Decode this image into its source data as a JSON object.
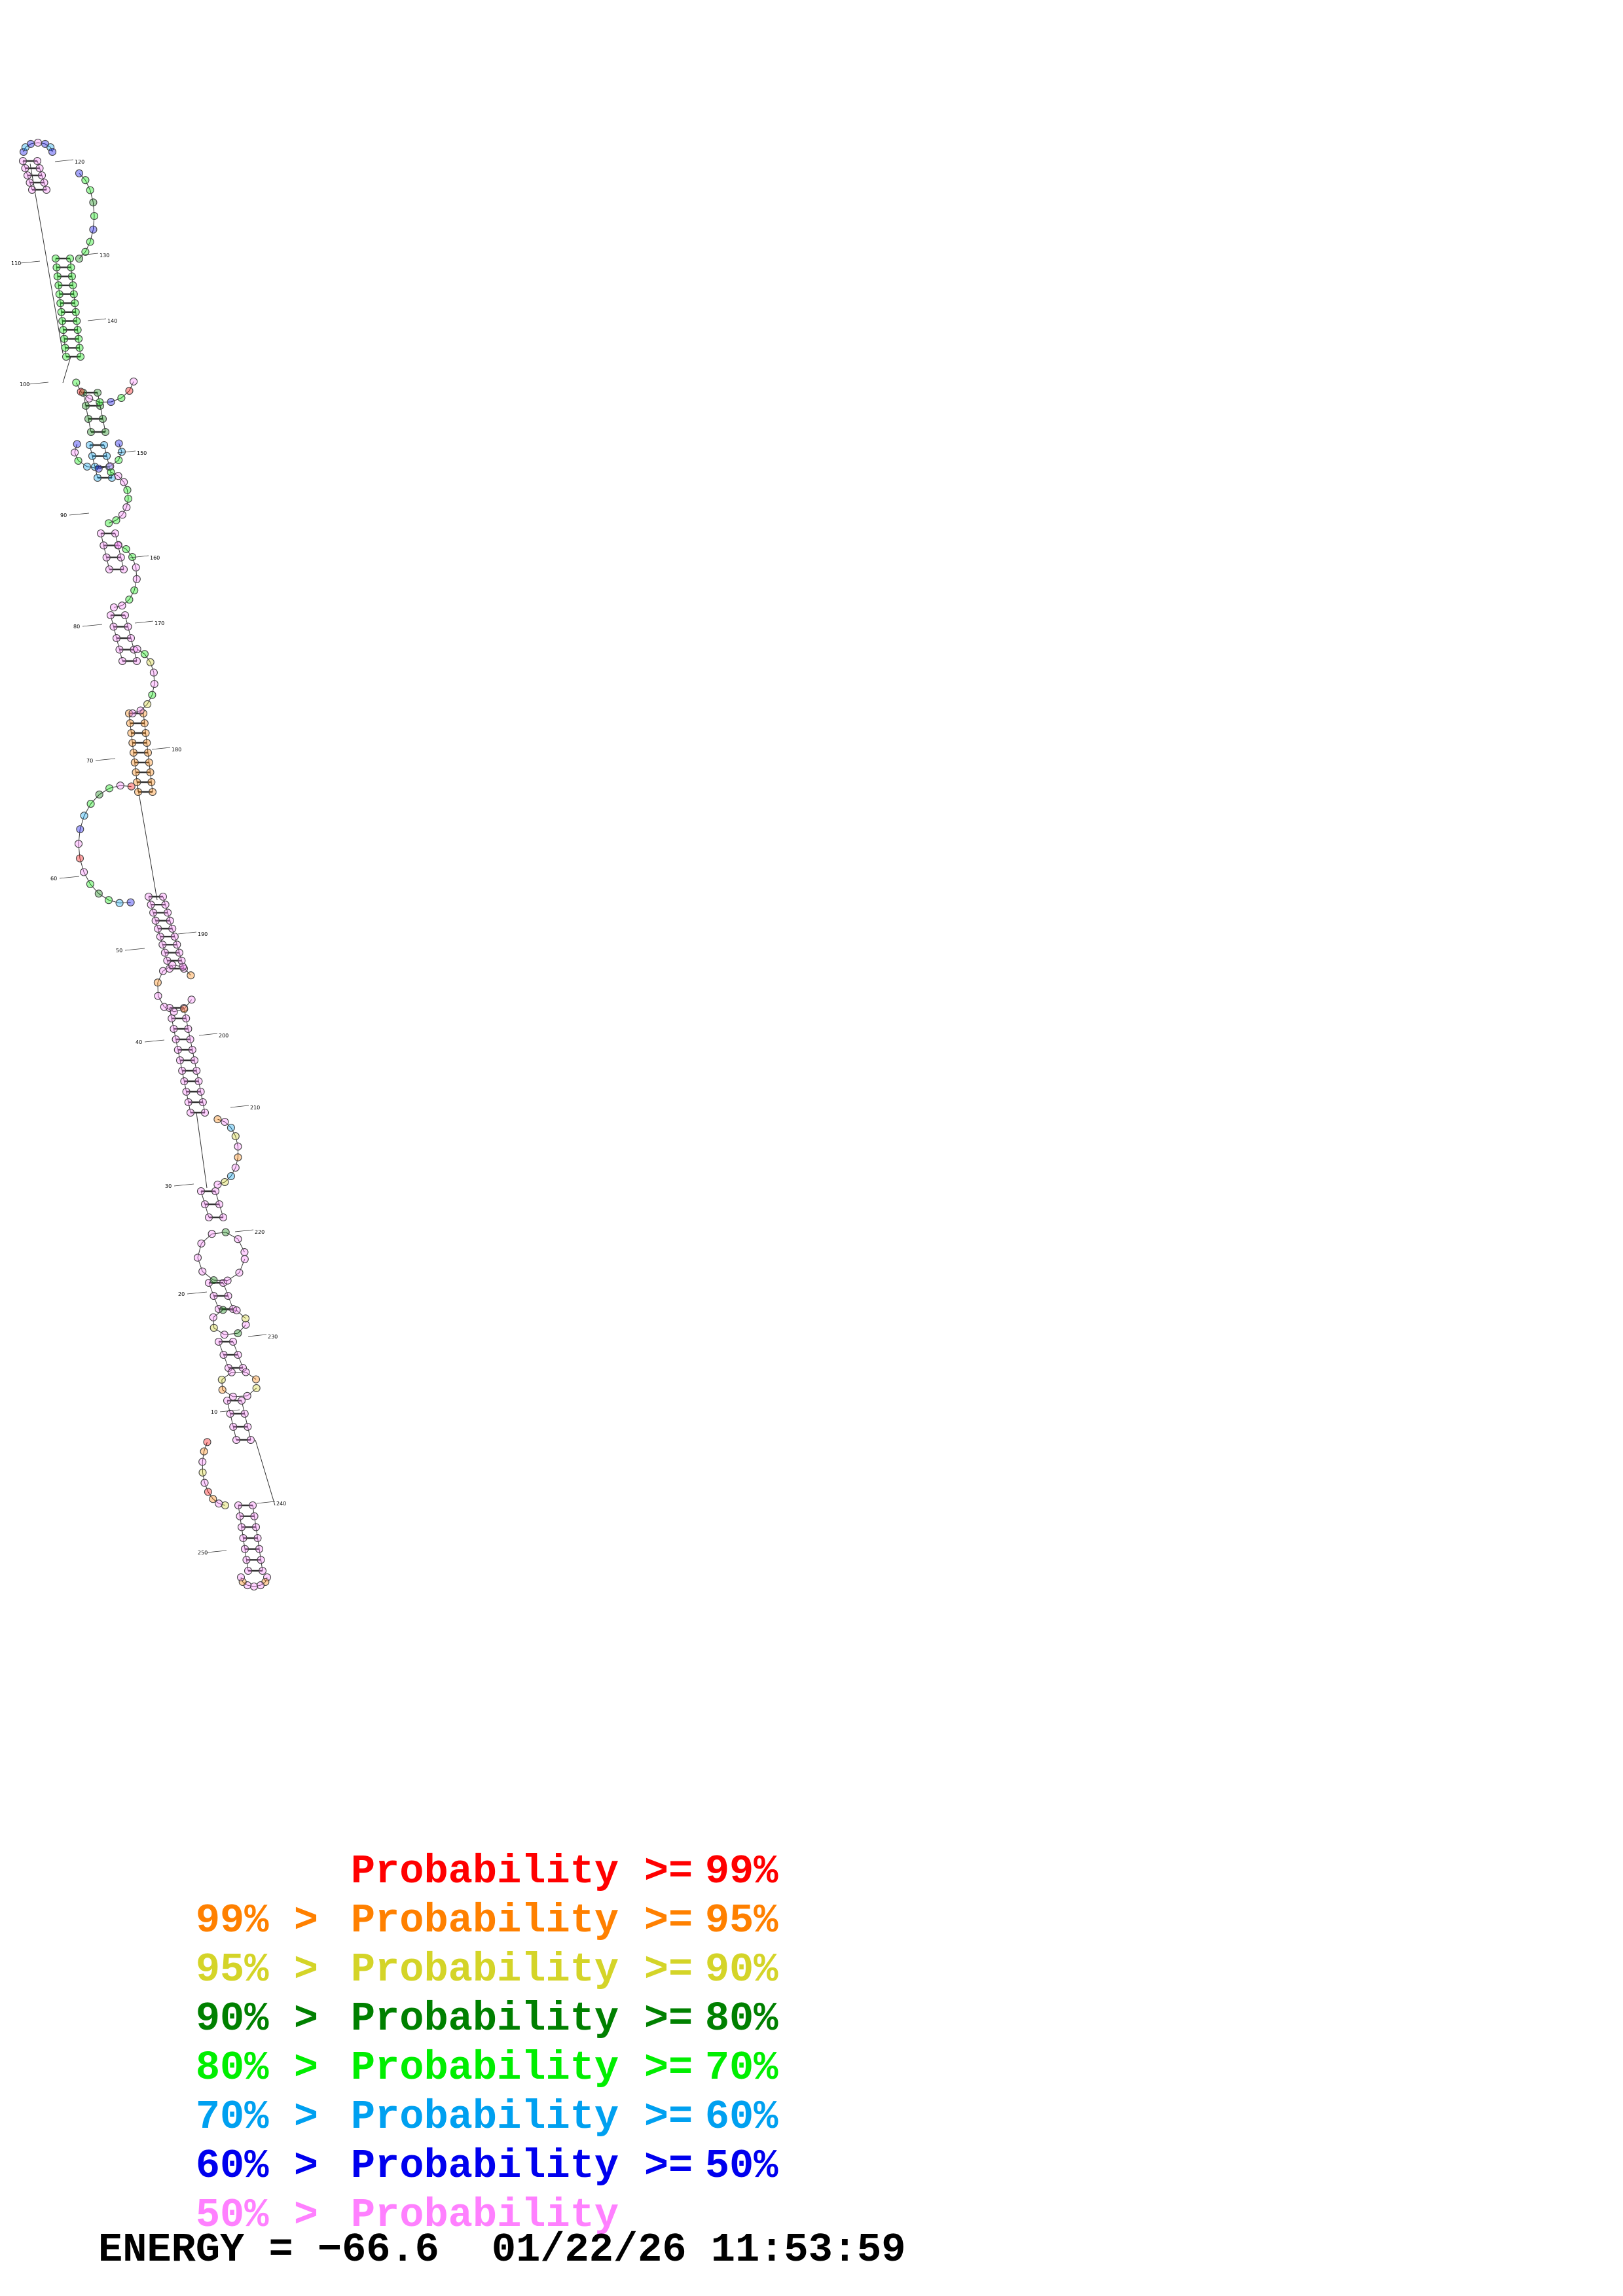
{
  "structure": {
    "position_labels": [
      "10",
      "20",
      "30",
      "40",
      "50",
      "60",
      "70",
      "80",
      "90",
      "100",
      "110",
      "120",
      "130",
      "140",
      "150",
      "160",
      "170",
      "180",
      "190",
      "200",
      "210",
      "220",
      "230",
      "240",
      "250"
    ]
  },
  "legend": {
    "rows": [
      {
        "left": "",
        "gt": "",
        "prob": "Probability",
        "ge": ">=",
        "right": "99%",
        "color": "#ff0000"
      },
      {
        "left": "99%",
        "gt": ">",
        "prob": "Probability",
        "ge": ">=",
        "right": "95%",
        "color": "#ff8000"
      },
      {
        "left": "95%",
        "gt": ">",
        "prob": "Probability",
        "ge": ">=",
        "right": "90%",
        "color": "#d4d428"
      },
      {
        "left": "90%",
        "gt": ">",
        "prob": "Probability",
        "ge": ">=",
        "right": "80%",
        "color": "#008000"
      },
      {
        "left": "80%",
        "gt": ">",
        "prob": "Probability",
        "ge": ">=",
        "right": "70%",
        "color": "#00ee00"
      },
      {
        "left": "70%",
        "gt": ">",
        "prob": "Probability",
        "ge": ">=",
        "right": "60%",
        "color": "#00a0f0"
      },
      {
        "left": "60%",
        "gt": ">",
        "prob": "Probability",
        "ge": ">=",
        "right": "50%",
        "color": "#0000ee"
      },
      {
        "left": "50%",
        "gt": ">",
        "prob": "Probability",
        "ge": "",
        "right": "",
        "color": "#ff80ff"
      }
    ]
  },
  "footer": {
    "energy_label": "ENERGY = ",
    "energy_value": "−66.6",
    "timestamp": "01/22/26 11:53:59"
  }
}
